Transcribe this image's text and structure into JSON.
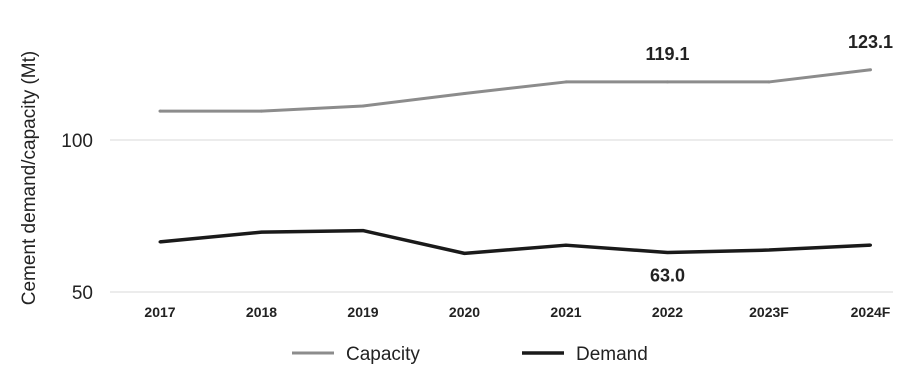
{
  "chart_data": {
    "type": "line",
    "title": "",
    "xlabel": "",
    "ylabel": "Cement demand/capacity (Mt)",
    "categories": [
      "2017",
      "2018",
      "2019",
      "2020",
      "2021",
      "2022",
      "2023F",
      "2024F"
    ],
    "series": [
      {
        "name": "Capacity",
        "color": "#8c8c8c",
        "values": [
          109.5,
          109.5,
          111.2,
          115.3,
          119.1,
          119.1,
          119.1,
          123.1
        ]
      },
      {
        "name": "Demand",
        "color": "#1a1a1a",
        "values": [
          66.5,
          69.7,
          70.2,
          62.7,
          65.4,
          63.0,
          63.8,
          65.4
        ]
      }
    ],
    "yticks": [
      50,
      100
    ],
    "ylim": [
      50,
      140
    ],
    "grid": "horizontal",
    "legend_position": "bottom-center",
    "annotations": [
      {
        "series": 0,
        "index": 5,
        "text": "119.1",
        "position": "above"
      },
      {
        "series": 0,
        "index": 7,
        "text": "123.1",
        "position": "above"
      },
      {
        "series": 1,
        "index": 5,
        "text": "63.0",
        "position": "below"
      }
    ]
  }
}
